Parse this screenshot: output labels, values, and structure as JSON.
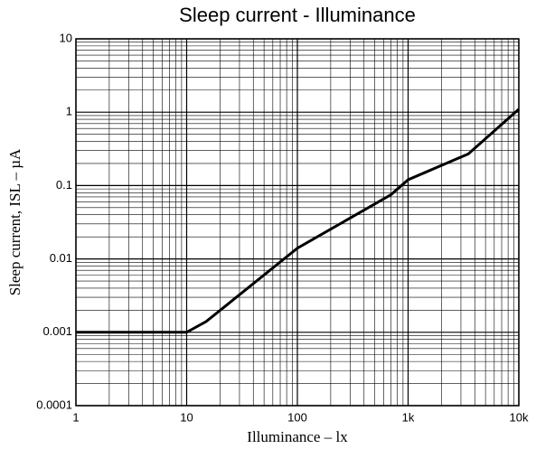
{
  "chart_data": {
    "type": "line",
    "title": "Sleep current - Illuminance",
    "xlabel": "Illuminance – lx",
    "ylabel": "Sleep current, ISL – µA",
    "x": [
      1,
      10,
      15,
      100,
      700,
      1000,
      3500,
      10000
    ],
    "series": [
      {
        "color": "#000000",
        "values": [
          0.001,
          0.001,
          0.0014,
          0.014,
          0.075,
          0.12,
          0.27,
          1.1
        ]
      }
    ],
    "xlim": [
      1,
      10000
    ],
    "ylim": [
      0.0001,
      10
    ],
    "xticks": [
      1,
      10,
      100,
      {
        "value": 1000,
        "label": "1k"
      },
      {
        "value": 10000,
        "label": "10k"
      }
    ],
    "yticks": [
      0.0001,
      0.001,
      0.01,
      0.1,
      1,
      10
    ],
    "xscale": "log",
    "yscale": "log",
    "grid": true,
    "minor_grid": true
  }
}
